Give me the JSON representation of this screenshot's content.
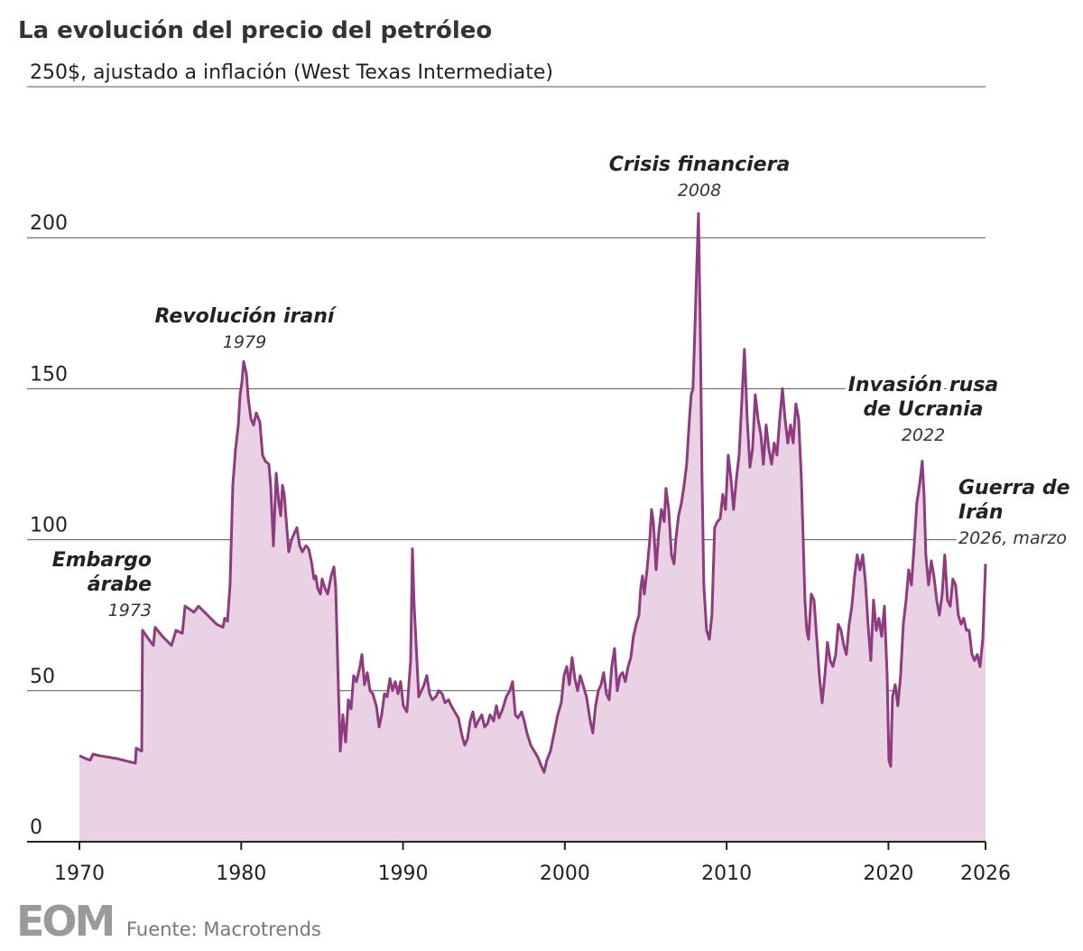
{
  "chart_data": {
    "type": "area",
    "title": "La evolución del precio del petróleo",
    "color": "#8e3b80",
    "fill_color": "#e8d2e3",
    "xlim": [
      1970,
      2026
    ],
    "xticks": [
      1970,
      1980,
      1990,
      2000,
      2010,
      2020,
      2026
    ],
    "ylim": [
      0,
      250
    ],
    "yticks": [
      0,
      50,
      100,
      150,
      200,
      {
        "value": 250,
        "label": "250$, ajustado a inflación (West Texas Intermediate)"
      }
    ],
    "grid": true,
    "x": [
      1970.0,
      1970.39,
      1970.67,
      1970.84,
      1971.23,
      1972.34,
      1973.46,
      1973.51,
      1973.85,
      1973.9,
      1974.29,
      1974.57,
      1974.68,
      1975.13,
      1975.69,
      1975.97,
      1976.36,
      1976.53,
      1977.08,
      1977.36,
      1977.92,
      1978.48,
      1978.87,
      1978.98,
      1979.15,
      1979.31,
      1979.48,
      1979.65,
      1979.82,
      1979.93,
      1980.04,
      1980.15,
      1980.32,
      1980.43,
      1980.6,
      1980.76,
      1980.93,
      1981.15,
      1981.32,
      1981.49,
      1981.71,
      1981.82,
      1981.99,
      1982.16,
      1982.33,
      1982.44,
      1982.55,
      1982.66,
      1982.83,
      1982.94,
      1983.11,
      1983.27,
      1983.44,
      1983.61,
      1983.78,
      1984.0,
      1984.17,
      1984.33,
      1984.5,
      1984.61,
      1984.72,
      1984.89,
      1985.0,
      1985.17,
      1985.34,
      1985.56,
      1985.73,
      1985.84,
      1986.01,
      1986.12,
      1986.28,
      1986.45,
      1986.62,
      1986.79,
      1986.95,
      1987.12,
      1987.34,
      1987.46,
      1987.62,
      1987.79,
      1987.96,
      1988.13,
      1988.35,
      1988.52,
      1988.68,
      1988.85,
      1989.02,
      1989.19,
      1989.35,
      1989.52,
      1989.69,
      1989.85,
      1990.02,
      1990.24,
      1990.47,
      1990.58,
      1990.69,
      1990.86,
      1990.97,
      1991.14,
      1991.3,
      1991.47,
      1991.64,
      1991.81,
      1992.03,
      1992.2,
      1992.42,
      1992.59,
      1992.81,
      1992.98,
      1993.2,
      1993.42,
      1993.65,
      1993.81,
      1993.98,
      1994.15,
      1994.32,
      1994.48,
      1994.65,
      1994.87,
      1995.04,
      1995.21,
      1995.38,
      1995.6,
      1995.77,
      1995.93,
      1996.16,
      1996.38,
      1996.6,
      1996.77,
      1996.94,
      1997.1,
      1997.33,
      1997.49,
      1997.66,
      1997.89,
      1998.11,
      1998.33,
      1998.55,
      1998.72,
      1998.89,
      1999.11,
      1999.34,
      1999.56,
      1999.78,
      1999.95,
      2000.12,
      2000.28,
      2000.45,
      2000.62,
      2000.79,
      2000.95,
      2001.12,
      2001.34,
      2001.57,
      2001.73,
      2001.9,
      2002.07,
      2002.24,
      2002.4,
      2002.57,
      2002.74,
      2002.9,
      2003.07,
      2003.24,
      2003.41,
      2003.57,
      2003.74,
      2003.91,
      2004.08,
      2004.24,
      2004.41,
      2004.58,
      2004.69,
      2004.8,
      2004.91,
      2005.08,
      2005.25,
      2005.36,
      2005.47,
      2005.64,
      2005.8,
      2005.97,
      2006.14,
      2006.25,
      2006.42,
      2006.59,
      2006.75,
      2006.86,
      2007.03,
      2007.2,
      2007.37,
      2007.53,
      2007.7,
      2007.81,
      2007.92,
      2008.04,
      2008.15,
      2008.26,
      2008.37,
      2008.48,
      2008.59,
      2008.76,
      2008.93,
      2009.09,
      2009.26,
      2009.43,
      2009.6,
      2009.76,
      2009.93,
      2010.1,
      2010.27,
      2010.43,
      2010.6,
      2010.77,
      2010.93,
      2011.1,
      2011.27,
      2011.44,
      2011.6,
      2011.77,
      2011.94,
      2012.11,
      2012.27,
      2012.44,
      2012.61,
      2012.78,
      2012.94,
      2013.11,
      2013.28,
      2013.45,
      2013.61,
      2013.78,
      2013.95,
      2014.11,
      2014.28,
      2014.45,
      2014.62,
      2014.73,
      2014.84,
      2014.95,
      2015.06,
      2015.23,
      2015.4,
      2015.56,
      2015.73,
      2015.9,
      2016.07,
      2016.23,
      2016.4,
      2016.57,
      2016.74,
      2016.9,
      2017.07,
      2017.24,
      2017.4,
      2017.57,
      2017.74,
      2017.91,
      2018.07,
      2018.24,
      2018.41,
      2018.58,
      2018.74,
      2018.91,
      2019.08,
      2019.25,
      2019.41,
      2019.58,
      2019.75,
      2019.92,
      2020.03,
      2020.14,
      2020.25,
      2020.42,
      2020.58,
      2020.75,
      2020.92,
      2021.09,
      2021.25,
      2021.42,
      2021.59,
      2021.75,
      2021.92,
      2022.09,
      2022.2,
      2022.31,
      2022.48,
      2022.65,
      2022.81,
      2022.98,
      2023.15,
      2023.32,
      2023.48,
      2023.65,
      2023.82,
      2023.98,
      2024.15,
      2024.32,
      2024.49,
      2024.65,
      2024.82,
      2024.99,
      2025.16,
      2025.32,
      2025.49,
      2025.66,
      2025.83,
      2026.0
    ],
    "values": [
      28.5,
      27.5,
      27,
      29,
      28.5,
      27.5,
      26,
      31,
      30,
      70,
      67,
      65,
      71,
      68,
      65,
      70,
      69,
      78,
      76,
      78,
      75,
      72,
      71,
      74,
      73,
      85,
      118,
      130,
      138,
      148,
      152,
      159,
      155,
      147,
      140,
      138,
      142,
      139,
      128,
      126,
      125,
      118,
      98,
      122,
      112,
      108,
      118,
      115,
      103,
      96,
      100,
      102,
      104,
      98,
      96,
      98,
      97,
      93,
      87,
      88,
      84,
      82,
      87,
      84,
      82,
      88,
      91,
      84,
      50,
      30,
      42,
      33,
      47,
      44,
      55,
      53,
      58,
      62,
      52,
      56,
      50,
      49,
      45,
      38,
      42,
      49,
      48,
      54,
      50,
      53,
      49,
      53,
      45,
      43,
      60,
      97,
      78,
      60,
      48,
      50,
      52,
      55,
      49,
      47,
      48,
      50,
      49,
      46,
      47,
      45,
      43,
      41,
      35,
      32,
      34,
      40,
      43,
      38,
      40,
      42,
      38,
      39,
      42,
      40,
      45,
      41,
      44,
      48,
      50,
      53,
      42,
      41,
      43,
      40,
      36,
      32,
      30,
      28,
      25,
      23,
      27,
      30,
      36,
      42,
      46,
      55,
      58,
      52,
      61,
      54,
      50,
      55,
      52,
      48,
      40,
      36,
      45,
      50,
      52,
      56,
      49,
      47,
      58,
      64,
      50,
      55,
      56,
      53,
      58,
      61,
      68,
      72,
      75,
      84,
      88,
      82,
      90,
      100,
      110,
      106,
      90,
      102,
      110,
      106,
      117,
      110,
      95,
      92,
      100,
      108,
      112,
      118,
      125,
      140,
      148,
      150,
      170,
      190,
      208,
      170,
      120,
      85,
      70,
      67,
      75,
      104,
      106,
      107,
      115,
      110,
      128,
      120,
      110,
      120,
      128,
      145,
      163,
      140,
      124,
      130,
      148,
      140,
      135,
      125,
      138,
      130,
      125,
      132,
      128,
      140,
      150,
      140,
      132,
      138,
      132,
      145,
      140,
      120,
      100,
      80,
      70,
      67,
      82,
      80,
      68,
      55,
      46,
      55,
      66,
      60,
      58,
      62,
      72,
      70,
      65,
      62,
      72,
      78,
      88,
      95,
      90,
      95,
      86,
      72,
      60,
      80,
      70,
      74,
      68,
      78,
      55,
      27,
      25,
      48,
      52,
      45,
      55,
      72,
      80,
      90,
      85,
      98,
      112,
      118,
      126,
      115,
      95,
      85,
      93,
      88,
      80,
      75,
      82,
      95,
      80,
      78,
      87,
      85,
      75,
      72,
      74,
      70,
      70,
      62,
      60,
      62,
      58,
      67,
      92
    ],
    "annotations": [
      {
        "lines": [
          "Embargo",
          "árabe"
        ],
        "date": "1973"
      },
      {
        "lines": [
          "Revolución iraní"
        ],
        "date": "1979"
      },
      {
        "lines": [
          "Crisis financiera"
        ],
        "date": "2008"
      },
      {
        "lines": [
          "Invasión rusa",
          "de Ucrania"
        ],
        "date": "2022"
      },
      {
        "lines": [
          "Guerra de",
          "Irán"
        ],
        "date": "2026, marzo"
      }
    ]
  },
  "footer": {
    "logo": "EOM",
    "source": "Fuente: Macrotrends"
  }
}
